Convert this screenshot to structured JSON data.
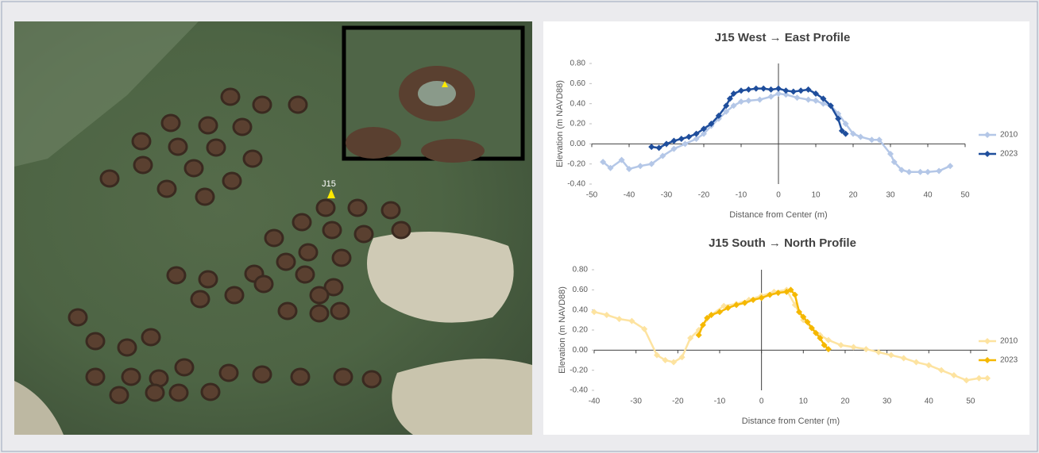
{
  "map": {
    "label": "J15"
  },
  "chart_data": [
    {
      "type": "line",
      "title": "J15 West → East Profile",
      "x_label": "Distance from Center (m)",
      "y_label": "Elevation (m NAVD88)",
      "xlim": [
        -50,
        50
      ],
      "ylim": [
        -0.4,
        0.8
      ],
      "xticks": [
        -50,
        -40,
        -30,
        -20,
        -10,
        0,
        10,
        20,
        30,
        40,
        50
      ],
      "yticks": [
        {
          "value": -0.4,
          "label": "-0.40"
        },
        {
          "value": -0.2,
          "label": "-0.20"
        },
        {
          "value": 0,
          "label": "0.00"
        },
        {
          "value": 0.2,
          "label": "0.20"
        },
        {
          "value": 0.4,
          "label": "0.40"
        },
        {
          "value": 0.6,
          "label": "0.60"
        },
        {
          "value": 0.8,
          "label": "0.80"
        }
      ],
      "grid": false,
      "legend": "right",
      "series": [
        {
          "name": "2010",
          "color": "#b4c7e7",
          "x": [
            -47,
            -45,
            -42,
            -40,
            -37,
            -34,
            -31,
            -28,
            -25,
            -22,
            -20,
            -18,
            -16,
            -14,
            -12,
            -10,
            -8,
            -5,
            -2,
            0,
            2,
            5,
            8,
            10,
            12,
            14,
            16,
            18,
            20,
            22,
            25,
            27,
            30,
            31,
            33,
            35,
            38,
            40,
            43,
            46
          ],
          "values": [
            -0.18,
            -0.24,
            -0.16,
            -0.25,
            -0.22,
            -0.2,
            -0.12,
            -0.05,
            0.0,
            0.05,
            0.1,
            0.18,
            0.25,
            0.32,
            0.38,
            0.42,
            0.43,
            0.44,
            0.47,
            0.5,
            0.49,
            0.46,
            0.44,
            0.43,
            0.4,
            0.38,
            0.3,
            0.2,
            0.1,
            0.07,
            0.04,
            0.04,
            -0.1,
            -0.18,
            -0.26,
            -0.28,
            -0.28,
            -0.28,
            -0.27,
            -0.22
          ]
        },
        {
          "name": "2023",
          "color": "#1f4e9c",
          "x": [
            -34,
            -32,
            -30,
            -28,
            -26,
            -24,
            -22,
            -20,
            -18,
            -16,
            -14,
            -13,
            -12,
            -10,
            -8,
            -6,
            -4,
            -2,
            0,
            2,
            4,
            6,
            8,
            10,
            12,
            14,
            16,
            17,
            18
          ],
          "values": [
            -0.03,
            -0.04,
            0.0,
            0.03,
            0.05,
            0.07,
            0.1,
            0.15,
            0.2,
            0.28,
            0.38,
            0.45,
            0.5,
            0.53,
            0.54,
            0.55,
            0.55,
            0.54,
            0.55,
            0.53,
            0.52,
            0.53,
            0.54,
            0.5,
            0.45,
            0.38,
            0.25,
            0.13,
            0.1
          ]
        }
      ]
    },
    {
      "type": "line",
      "title": "J15 South → North Profile",
      "x_label": "Distance from Center (m)",
      "y_label": "Elevation (m NAVD88)",
      "xlim": [
        -40,
        54
      ],
      "ylim": [
        -0.4,
        0.8
      ],
      "xticks": [
        -40,
        -30,
        -20,
        -10,
        0,
        10,
        20,
        30,
        40,
        50
      ],
      "yticks": [
        {
          "value": -0.4,
          "label": "-0.40"
        },
        {
          "value": -0.2,
          "label": "-0.20"
        },
        {
          "value": 0,
          "label": "0.00"
        },
        {
          "value": 0.2,
          "label": "0.20"
        },
        {
          "value": 0.4,
          "label": "0.40"
        },
        {
          "value": 0.6,
          "label": "0.60"
        },
        {
          "value": 0.8,
          "label": "0.80"
        }
      ],
      "grid": false,
      "legend": "right",
      "series": [
        {
          "name": "2010",
          "color": "#fde3a0",
          "x": [
            -40,
            -37,
            -34,
            -31,
            -28,
            -25,
            -23,
            -21,
            -19,
            -17,
            -15,
            -12,
            -9,
            -6,
            -3,
            0,
            3,
            6,
            8,
            10,
            12,
            14,
            16,
            19,
            22,
            25,
            28,
            31,
            34,
            37,
            40,
            43,
            46,
            49,
            52,
            54
          ],
          "values": [
            0.38,
            0.35,
            0.31,
            0.29,
            0.21,
            -0.05,
            -0.1,
            -0.12,
            -0.07,
            0.12,
            0.2,
            0.35,
            0.44,
            0.46,
            0.5,
            0.54,
            0.58,
            0.6,
            0.45,
            0.3,
            0.22,
            0.15,
            0.1,
            0.05,
            0.03,
            0.01,
            -0.02,
            -0.05,
            -0.08,
            -0.12,
            -0.15,
            -0.2,
            -0.25,
            -0.3,
            -0.28,
            -0.28
          ]
        },
        {
          "name": "2023",
          "color": "#f5b800",
          "x": [
            -15,
            -14,
            -13,
            -12,
            -10,
            -8,
            -6,
            -4,
            -2,
            0,
            2,
            4,
            6,
            7,
            8,
            9,
            10,
            11,
            12,
            13,
            14,
            15,
            16
          ],
          "values": [
            0.15,
            0.25,
            0.32,
            0.35,
            0.38,
            0.42,
            0.45,
            0.47,
            0.5,
            0.52,
            0.55,
            0.57,
            0.58,
            0.6,
            0.55,
            0.38,
            0.33,
            0.28,
            0.22,
            0.17,
            0.12,
            0.05,
            0.01
          ]
        }
      ]
    }
  ]
}
